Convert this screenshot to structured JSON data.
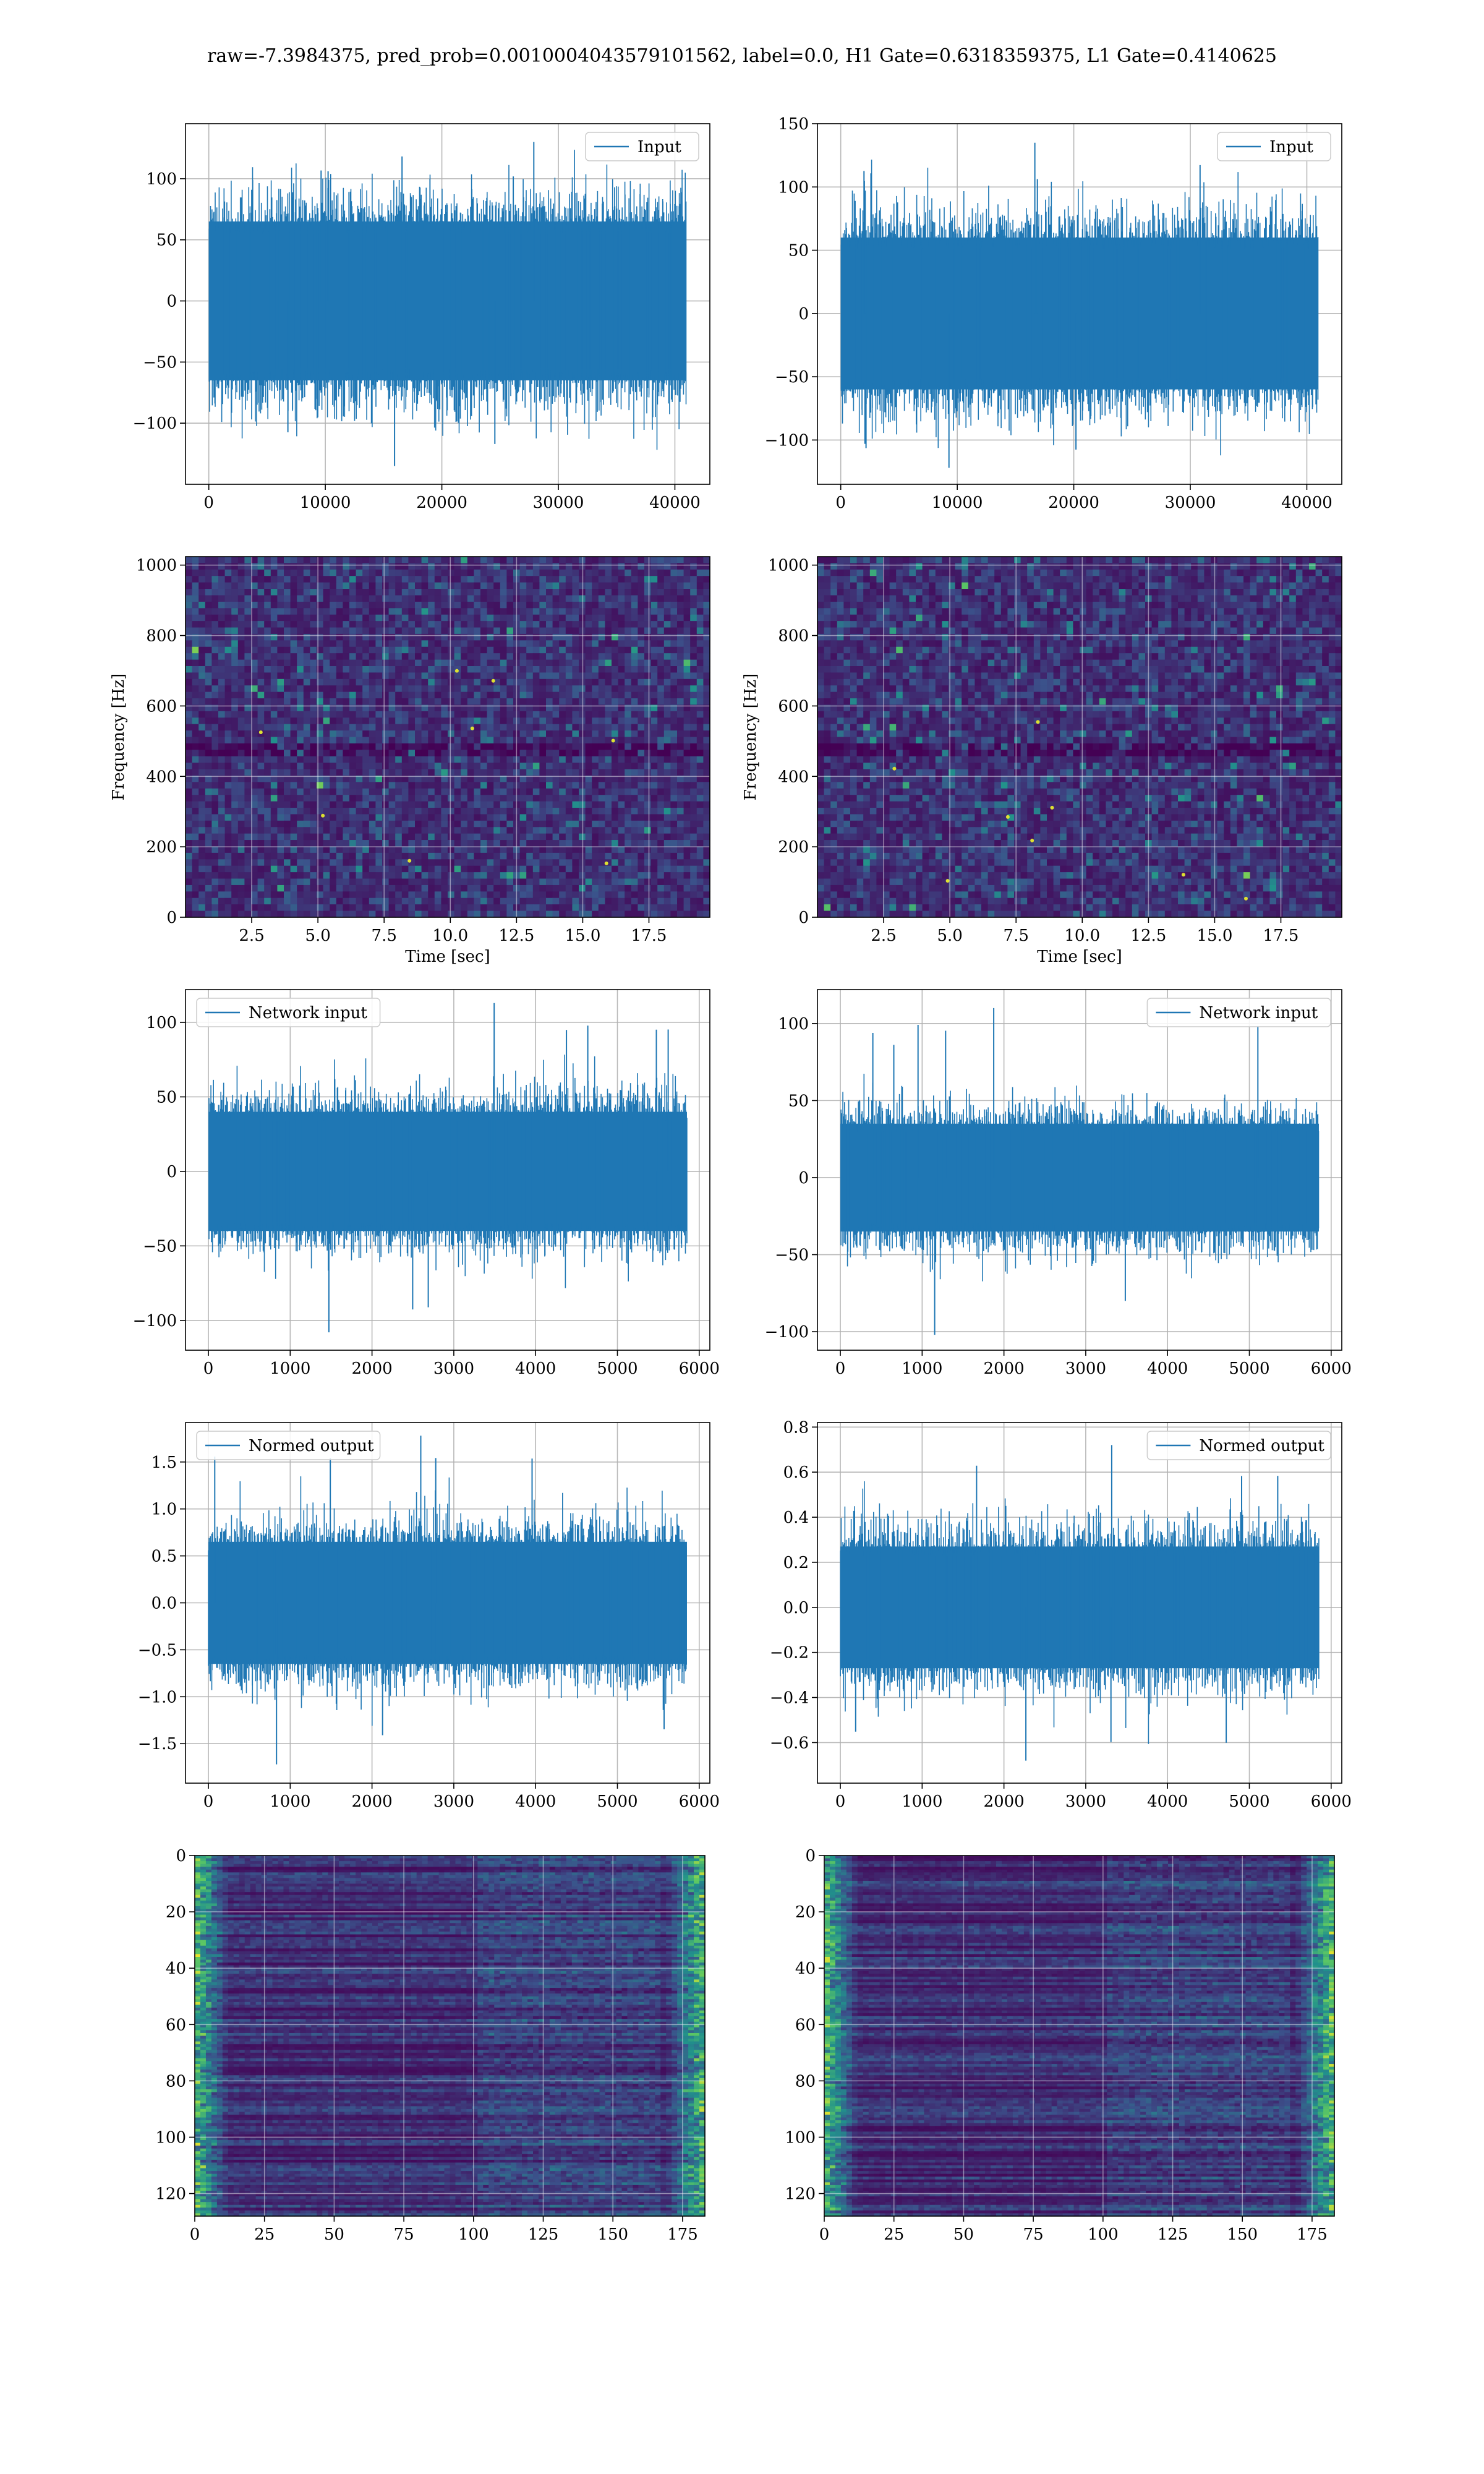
{
  "figure": {
    "suptitle": "raw=-7.3984375, pred_prob=0.0010004043579101562, label=0.0, H1 Gate=0.6318359375, L1 Gate=0.4140625"
  },
  "colors": {
    "line": "#1f77b4",
    "grid": "#b0b0b0",
    "viridis_low": "#440154",
    "viridis_mid": "#21918c",
    "viridis_high": "#fde725"
  },
  "chart_data": [
    {
      "id": "h1-input",
      "type": "line",
      "col": 0,
      "row": 0,
      "xlim": [
        -2000,
        43000
      ],
      "ylim": [
        -150,
        145
      ],
      "xticks": [
        0,
        10000,
        20000,
        30000,
        40000
      ],
      "xtick_labels": [
        "0",
        "10000",
        "20000",
        "30000",
        "40000"
      ],
      "yticks": [
        -100,
        -50,
        0,
        50,
        100
      ],
      "ytick_labels": [
        "−100",
        "−50",
        "0",
        "50",
        "100"
      ],
      "x_range": [
        0,
        40960
      ],
      "envelope": 65,
      "spike_max": 130,
      "spike_min": -135,
      "legend": "Input",
      "legend_loc": "upper right",
      "xlabel": "",
      "ylabel": "",
      "grid": true
    },
    {
      "id": "l1-input",
      "type": "line",
      "col": 1,
      "row": 0,
      "xlim": [
        -2000,
        43000
      ],
      "ylim": [
        -135,
        150
      ],
      "xticks": [
        0,
        10000,
        20000,
        30000,
        40000
      ],
      "xtick_labels": [
        "0",
        "10000",
        "20000",
        "30000",
        "40000"
      ],
      "yticks": [
        -100,
        -50,
        0,
        50,
        100,
        150
      ],
      "ytick_labels": [
        "−100",
        "−50",
        "0",
        "50",
        "100",
        "150"
      ],
      "x_range": [
        0,
        40960
      ],
      "envelope": 60,
      "spike_max": 135,
      "spike_min": -122,
      "legend": "Input",
      "legend_loc": "upper right",
      "xlabel": "",
      "ylabel": "",
      "grid": true
    },
    {
      "id": "h1-spectrogram",
      "type": "heatmap",
      "col": 0,
      "row": 1,
      "xlim": [
        0,
        19.8
      ],
      "ylim": [
        0,
        1024
      ],
      "xticks": [
        2.5,
        5.0,
        7.5,
        10.0,
        12.5,
        15.0,
        17.5
      ],
      "xtick_labels": [
        "2.5",
        "5.0",
        "7.5",
        "10.0",
        "12.5",
        "15.0",
        "17.5"
      ],
      "yticks": [
        0,
        200,
        400,
        600,
        800,
        1000
      ],
      "ytick_labels": [
        "0",
        "200",
        "400",
        "600",
        "800",
        "1000"
      ],
      "xlabel": "Time [sec]",
      "ylabel": "Frequency [Hz]",
      "colormap": "viridis",
      "grid": true
    },
    {
      "id": "l1-spectrogram",
      "type": "heatmap",
      "col": 1,
      "row": 1,
      "xlim": [
        0,
        19.8
      ],
      "ylim": [
        0,
        1024
      ],
      "xticks": [
        2.5,
        5.0,
        7.5,
        10.0,
        12.5,
        15.0,
        17.5
      ],
      "xtick_labels": [
        "2.5",
        "5.0",
        "7.5",
        "10.0",
        "12.5",
        "15.0",
        "17.5"
      ],
      "yticks": [
        0,
        200,
        400,
        600,
        800,
        1000
      ],
      "ytick_labels": [
        "0",
        "200",
        "400",
        "600",
        "800",
        "1000"
      ],
      "xlabel": "Time [sec]",
      "ylabel": "Frequency [Hz]",
      "colormap": "viridis",
      "grid": true
    },
    {
      "id": "h1-network-input",
      "type": "line",
      "col": 0,
      "row": 2,
      "xlim": [
        -280,
        6130
      ],
      "ylim": [
        -120,
        122
      ],
      "xticks": [
        0,
        1000,
        2000,
        3000,
        4000,
        5000,
        6000
      ],
      "xtick_labels": [
        "0",
        "1000",
        "2000",
        "3000",
        "4000",
        "5000",
        "6000"
      ],
      "yticks": [
        -100,
        -50,
        0,
        50,
        100
      ],
      "ytick_labels": [
        "−100",
        "−50",
        "0",
        "50",
        "100"
      ],
      "x_range": [
        0,
        5850
      ],
      "envelope": 40,
      "spike_max": 113,
      "spike_min": -108,
      "legend": "Network input",
      "legend_loc": "upper left",
      "xlabel": "",
      "ylabel": "",
      "grid": true
    },
    {
      "id": "l1-network-input",
      "type": "line",
      "col": 1,
      "row": 2,
      "xlim": [
        -280,
        6130
      ],
      "ylim": [
        -112,
        122
      ],
      "xticks": [
        0,
        1000,
        2000,
        3000,
        4000,
        5000,
        6000
      ],
      "xtick_labels": [
        "0",
        "1000",
        "2000",
        "3000",
        "4000",
        "5000",
        "6000"
      ],
      "yticks": [
        -100,
        -50,
        0,
        50,
        100
      ],
      "ytick_labels": [
        "−100",
        "−50",
        "0",
        "50",
        "100"
      ],
      "x_range": [
        0,
        5850
      ],
      "envelope": 35,
      "spike_max": 110,
      "spike_min": -102,
      "legend": "Network input",
      "legend_loc": "upper right",
      "xlabel": "",
      "ylabel": "",
      "grid": true
    },
    {
      "id": "h1-normed-output",
      "type": "line",
      "col": 0,
      "row": 3,
      "xlim": [
        -280,
        6130
      ],
      "ylim": [
        -1.92,
        1.92
      ],
      "xticks": [
        0,
        1000,
        2000,
        3000,
        4000,
        5000,
        6000
      ],
      "xtick_labels": [
        "0",
        "1000",
        "2000",
        "3000",
        "4000",
        "5000",
        "6000"
      ],
      "yticks": [
        -1.5,
        -1.0,
        -0.5,
        0.0,
        0.5,
        1.0,
        1.5
      ],
      "ytick_labels": [
        "−1.5",
        "−1.0",
        "−0.5",
        "0.0",
        "0.5",
        "1.0",
        "1.5"
      ],
      "x_range": [
        0,
        5850
      ],
      "envelope": 0.65,
      "spike_max": 1.78,
      "spike_min": -1.72,
      "legend": "Normed output",
      "legend_loc": "upper left",
      "xlabel": "",
      "ylabel": "",
      "grid": true
    },
    {
      "id": "l1-normed-output",
      "type": "line",
      "col": 1,
      "row": 3,
      "xlim": [
        -280,
        6130
      ],
      "ylim": [
        -0.78,
        0.82
      ],
      "xticks": [
        0,
        1000,
        2000,
        3000,
        4000,
        5000,
        6000
      ],
      "xtick_labels": [
        "0",
        "1000",
        "2000",
        "3000",
        "4000",
        "5000",
        "6000"
      ],
      "yticks": [
        -0.6,
        -0.4,
        -0.2,
        0.0,
        0.2,
        0.4,
        0.6,
        0.8
      ],
      "ytick_labels": [
        "−0.6",
        "−0.4",
        "−0.2",
        "0.0",
        "0.2",
        "0.4",
        "0.6",
        "0.8"
      ],
      "x_range": [
        0,
        5850
      ],
      "envelope": 0.27,
      "spike_max": 0.72,
      "spike_min": -0.68,
      "legend": "Normed output",
      "legend_loc": "upper right",
      "xlabel": "",
      "ylabel": "",
      "grid": true
    },
    {
      "id": "h1-feature-map",
      "type": "heatmap",
      "col": 0,
      "row": 4,
      "xlim": [
        0,
        183
      ],
      "ylim": [
        128,
        0
      ],
      "y_inverted": true,
      "xticks": [
        0,
        25,
        50,
        75,
        100,
        125,
        150,
        175
      ],
      "xtick_labels": [
        "0",
        "25",
        "50",
        "75",
        "100",
        "125",
        "150",
        "175"
      ],
      "yticks": [
        0,
        20,
        40,
        60,
        80,
        100,
        120
      ],
      "ytick_labels": [
        "0",
        "20",
        "40",
        "60",
        "80",
        "100",
        "120"
      ],
      "xlabel": "",
      "ylabel": "",
      "colormap": "viridis",
      "grid": true
    },
    {
      "id": "l1-feature-map",
      "type": "heatmap",
      "col": 1,
      "row": 4,
      "xlim": [
        0,
        183
      ],
      "ylim": [
        128,
        0
      ],
      "y_inverted": true,
      "xticks": [
        0,
        25,
        50,
        75,
        100,
        125,
        150,
        175
      ],
      "xtick_labels": [
        "0",
        "25",
        "50",
        "75",
        "100",
        "125",
        "150",
        "175"
      ],
      "yticks": [
        0,
        20,
        40,
        60,
        80,
        100,
        120
      ],
      "ytick_labels": [
        "0",
        "20",
        "40",
        "60",
        "80",
        "100",
        "120"
      ],
      "xlabel": "",
      "ylabel": "",
      "colormap": "viridis",
      "grid": true
    }
  ]
}
